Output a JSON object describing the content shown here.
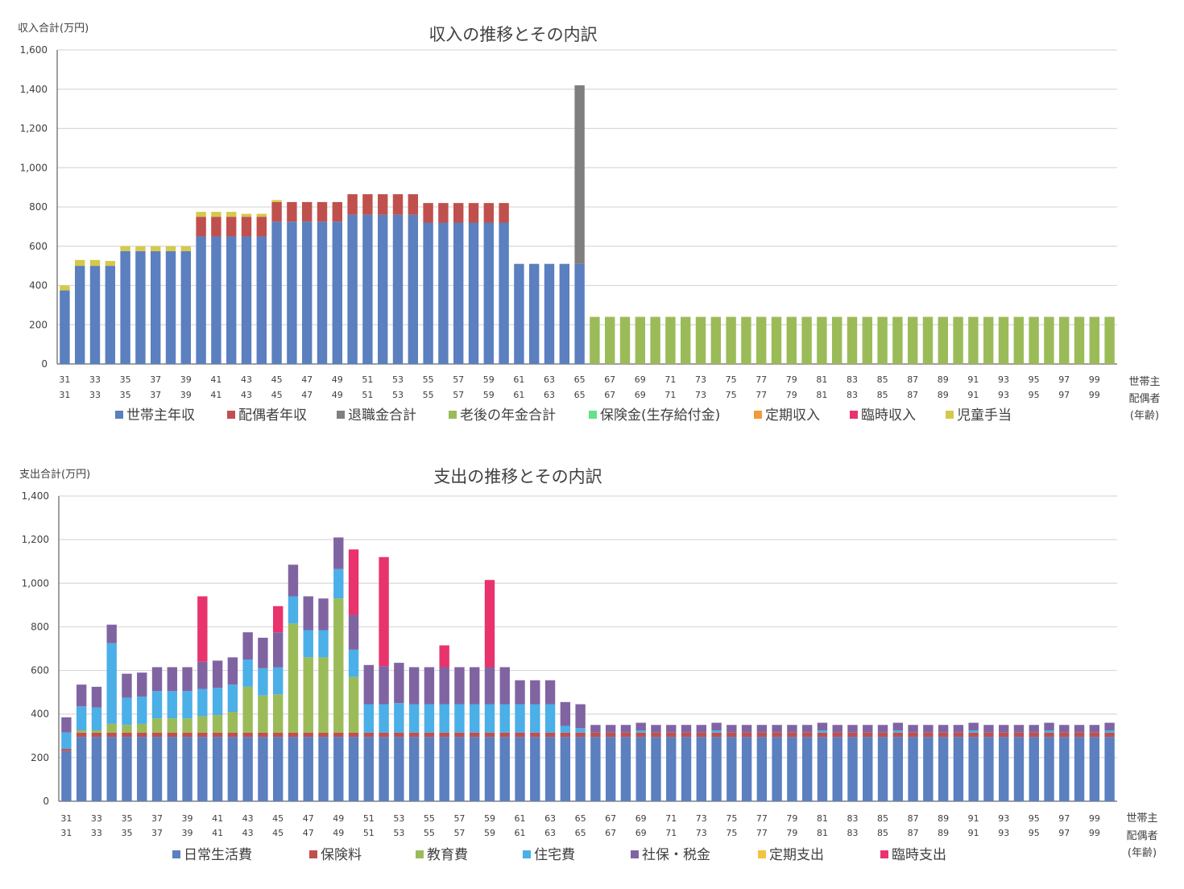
{
  "chart_data": [
    {
      "type": "bar",
      "stacked": true,
      "title": "収入の推移とその内訳",
      "ylabel": "収入合計(万円)",
      "ylim": [
        0,
        1600
      ],
      "yticks": [
        "0",
        "200",
        "400",
        "600",
        "800",
        "1,000",
        "1,200",
        "1,400",
        "1,600"
      ],
      "ytick_values": [
        0,
        200,
        400,
        600,
        800,
        1000,
        1200,
        1400,
        1600
      ],
      "x_start": 31,
      "x_end": 100,
      "x_label_right": [
        "世帯主",
        "配偶者",
        "(年齢)"
      ],
      "legend_position": "bottom",
      "grid": true,
      "series": [
        {
          "name": "世帯主年収",
          "color": "#5b7fbf",
          "values": [
            375,
            500,
            500,
            500,
            575,
            575,
            575,
            575,
            575,
            650,
            650,
            650,
            650,
            650,
            725,
            725,
            725,
            725,
            725,
            760,
            760,
            760,
            760,
            760,
            720,
            720,
            720,
            720,
            720,
            720,
            510,
            510,
            510,
            510,
            510,
            0,
            0,
            0,
            0,
            0,
            0,
            0,
            0,
            0,
            0,
            0,
            0,
            0,
            0,
            0,
            0,
            0,
            0,
            0,
            0,
            0,
            0,
            0,
            0,
            0,
            0,
            0,
            0,
            0,
            0,
            0,
            0,
            0,
            0,
            0
          ]
        },
        {
          "name": "配偶者年収",
          "color": "#c0504d",
          "values": [
            0,
            0,
            0,
            0,
            0,
            0,
            0,
            0,
            0,
            100,
            100,
            100,
            100,
            100,
            100,
            100,
            100,
            100,
            100,
            105,
            105,
            105,
            105,
            105,
            100,
            100,
            100,
            100,
            100,
            100,
            0,
            0,
            0,
            0,
            0,
            0,
            0,
            0,
            0,
            0,
            0,
            0,
            0,
            0,
            0,
            0,
            0,
            0,
            0,
            0,
            0,
            0,
            0,
            0,
            0,
            0,
            0,
            0,
            0,
            0,
            0,
            0,
            0,
            0,
            0,
            0,
            0,
            0,
            0,
            0
          ]
        },
        {
          "name": "退職金合計",
          "color": "#7f7f7f",
          "values": [
            0,
            0,
            0,
            0,
            0,
            0,
            0,
            0,
            0,
            0,
            0,
            0,
            0,
            0,
            0,
            0,
            0,
            0,
            0,
            0,
            0,
            0,
            0,
            0,
            0,
            0,
            0,
            0,
            0,
            0,
            0,
            0,
            0,
            0,
            910,
            0,
            0,
            0,
            0,
            0,
            0,
            0,
            0,
            0,
            0,
            0,
            0,
            0,
            0,
            0,
            0,
            0,
            0,
            0,
            0,
            0,
            0,
            0,
            0,
            0,
            0,
            0,
            0,
            0,
            0,
            0,
            0,
            0,
            0,
            0
          ]
        },
        {
          "name": "老後の年金合計",
          "color": "#9bbb59",
          "values": [
            0,
            0,
            0,
            0,
            0,
            0,
            0,
            0,
            0,
            0,
            0,
            0,
            0,
            0,
            0,
            0,
            0,
            0,
            0,
            0,
            0,
            0,
            0,
            0,
            0,
            0,
            0,
            0,
            0,
            0,
            0,
            0,
            0,
            0,
            0,
            240,
            240,
            240,
            240,
            240,
            240,
            240,
            240,
            240,
            240,
            240,
            240,
            240,
            240,
            240,
            240,
            240,
            240,
            240,
            240,
            240,
            240,
            240,
            240,
            240,
            240,
            240,
            240,
            240,
            240,
            240,
            240,
            240,
            240,
            240
          ]
        },
        {
          "name": "保険金(生存給付金)",
          "color": "#66e08a",
          "values": [
            0,
            0,
            0,
            0,
            0,
            0,
            0,
            0,
            0,
            0,
            0,
            0,
            0,
            0,
            0,
            0,
            0,
            0,
            0,
            0,
            0,
            0,
            0,
            0,
            0,
            0,
            0,
            0,
            0,
            0,
            0,
            0,
            0,
            0,
            0,
            0,
            0,
            0,
            0,
            0,
            0,
            0,
            0,
            0,
            0,
            0,
            0,
            0,
            0,
            0,
            0,
            0,
            0,
            0,
            0,
            0,
            0,
            0,
            0,
            0,
            0,
            0,
            0,
            0,
            0,
            0,
            0,
            0,
            0,
            0
          ]
        },
        {
          "name": "定期収入",
          "color": "#f39a3b",
          "values": [
            0,
            0,
            0,
            0,
            0,
            0,
            0,
            0,
            0,
            0,
            0,
            0,
            0,
            0,
            0,
            0,
            0,
            0,
            0,
            0,
            0,
            0,
            0,
            0,
            0,
            0,
            0,
            0,
            0,
            0,
            0,
            0,
            0,
            0,
            0,
            0,
            0,
            0,
            0,
            0,
            0,
            0,
            0,
            0,
            0,
            0,
            0,
            0,
            0,
            0,
            0,
            0,
            0,
            0,
            0,
            0,
            0,
            0,
            0,
            0,
            0,
            0,
            0,
            0,
            0,
            0,
            0,
            0,
            0,
            0
          ]
        },
        {
          "name": "臨時収入",
          "color": "#e8336d",
          "values": [
            0,
            0,
            0,
            0,
            0,
            0,
            0,
            0,
            0,
            0,
            0,
            0,
            0,
            0,
            0,
            0,
            0,
            0,
            0,
            0,
            0,
            0,
            0,
            0,
            0,
            0,
            0,
            0,
            0,
            0,
            0,
            0,
            0,
            0,
            0,
            0,
            0,
            0,
            0,
            0,
            0,
            0,
            0,
            0,
            0,
            0,
            0,
            0,
            0,
            0,
            0,
            0,
            0,
            0,
            0,
            0,
            0,
            0,
            0,
            0,
            0,
            0,
            0,
            0,
            0,
            0,
            0,
            0,
            0,
            0
          ]
        },
        {
          "name": "児童手当",
          "color": "#d4c94a",
          "values": [
            25,
            30,
            30,
            25,
            25,
            25,
            25,
            25,
            25,
            25,
            25,
            25,
            15,
            15,
            10,
            0,
            0,
            0,
            0,
            0,
            0,
            0,
            0,
            0,
            0,
            0,
            0,
            0,
            0,
            0,
            0,
            0,
            0,
            0,
            0,
            0,
            0,
            0,
            0,
            0,
            0,
            0,
            0,
            0,
            0,
            0,
            0,
            0,
            0,
            0,
            0,
            0,
            0,
            0,
            0,
            0,
            0,
            0,
            0,
            0,
            0,
            0,
            0,
            0,
            0,
            0,
            0,
            0,
            0,
            0
          ]
        }
      ]
    },
    {
      "type": "bar",
      "stacked": true,
      "title": "支出の推移とその内訳",
      "ylabel": "支出合計(万円)",
      "ylim": [
        0,
        1400
      ],
      "yticks": [
        "0",
        "200",
        "400",
        "600",
        "800",
        "1,000",
        "1,200",
        "1,400"
      ],
      "ytick_values": [
        0,
        200,
        400,
        600,
        800,
        1000,
        1200,
        1400
      ],
      "x_start": 31,
      "x_end": 100,
      "x_label_right": [
        "世帯主",
        "配偶者",
        "(年齢)"
      ],
      "legend_position": "bottom",
      "grid": true,
      "series": [
        {
          "name": "日常生活費",
          "color": "#5b7fbf",
          "values": [
            230,
            295,
            295,
            295,
            295,
            295,
            295,
            295,
            295,
            295,
            295,
            295,
            295,
            295,
            295,
            295,
            295,
            295,
            295,
            295,
            295,
            295,
            295,
            295,
            295,
            295,
            295,
            295,
            295,
            295,
            295,
            295,
            295,
            295,
            295,
            295,
            295,
            295,
            295,
            295,
            295,
            295,
            295,
            295,
            295,
            295,
            295,
            295,
            295,
            295,
            295,
            295,
            295,
            295,
            295,
            295,
            295,
            295,
            295,
            295,
            295,
            295,
            295,
            295,
            295,
            295,
            295,
            295,
            295,
            295
          ]
        },
        {
          "name": "保険料",
          "color": "#c0504d",
          "values": [
            10,
            20,
            20,
            20,
            20,
            20,
            20,
            20,
            20,
            20,
            20,
            20,
            20,
            20,
            20,
            20,
            20,
            20,
            20,
            20,
            20,
            20,
            20,
            20,
            20,
            20,
            20,
            20,
            20,
            20,
            20,
            20,
            20,
            20,
            20,
            20,
            20,
            20,
            20,
            20,
            20,
            20,
            20,
            20,
            20,
            20,
            20,
            20,
            20,
            20,
            20,
            20,
            20,
            20,
            20,
            20,
            20,
            20,
            20,
            20,
            20,
            20,
            20,
            20,
            20,
            20,
            20,
            20,
            20,
            20
          ]
        },
        {
          "name": "教育費",
          "color": "#9bbb59",
          "values": [
            0,
            10,
            10,
            40,
            35,
            40,
            65,
            65,
            65,
            75,
            80,
            95,
            210,
            170,
            175,
            500,
            345,
            345,
            615,
            255,
            0,
            0,
            0,
            0,
            0,
            0,
            0,
            0,
            0,
            0,
            0,
            0,
            0,
            0,
            0,
            0,
            0,
            0,
            0,
            0,
            0,
            0,
            0,
            0,
            0,
            0,
            0,
            0,
            0,
            0,
            0,
            0,
            0,
            0,
            0,
            0,
            0,
            0,
            0,
            0,
            0,
            0,
            0,
            0,
            0,
            0,
            0,
            0,
            0,
            0
          ]
        },
        {
          "name": "住宅費",
          "color": "#4bafe8",
          "values": [
            75,
            110,
            105,
            370,
            125,
            125,
            125,
            125,
            125,
            125,
            125,
            125,
            125,
            125,
            125,
            125,
            125,
            125,
            135,
            125,
            130,
            130,
            135,
            130,
            130,
            130,
            130,
            130,
            130,
            130,
            130,
            130,
            130,
            30,
            20,
            0,
            0,
            0,
            10,
            0,
            0,
            0,
            0,
            10,
            0,
            0,
            0,
            0,
            0,
            0,
            10,
            0,
            0,
            0,
            0,
            10,
            0,
            0,
            0,
            0,
            10,
            0,
            0,
            0,
            0,
            10,
            0,
            0,
            0,
            10
          ]
        },
        {
          "name": "社保・税金",
          "color": "#8064a2",
          "values": [
            70,
            100,
            95,
            85,
            110,
            110,
            110,
            110,
            110,
            125,
            125,
            125,
            125,
            140,
            160,
            145,
            155,
            145,
            145,
            160,
            180,
            175,
            185,
            170,
            170,
            170,
            170,
            170,
            170,
            170,
            110,
            110,
            110,
            110,
            110,
            35,
            35,
            35,
            35,
            35,
            35,
            35,
            35,
            35,
            35,
            35,
            35,
            35,
            35,
            35,
            35,
            35,
            35,
            35,
            35,
            35,
            35,
            35,
            35,
            35,
            35,
            35,
            35,
            35,
            35,
            35,
            35,
            35,
            35,
            35
          ]
        },
        {
          "name": "定期支出",
          "color": "#f5c242",
          "values": [
            0,
            0,
            0,
            0,
            0,
            0,
            0,
            0,
            0,
            0,
            0,
            0,
            0,
            0,
            0,
            0,
            0,
            0,
            0,
            0,
            0,
            0,
            0,
            0,
            0,
            0,
            0,
            0,
            0,
            0,
            0,
            0,
            0,
            0,
            0,
            0,
            0,
            0,
            0,
            0,
            0,
            0,
            0,
            0,
            0,
            0,
            0,
            0,
            0,
            0,
            0,
            0,
            0,
            0,
            0,
            0,
            0,
            0,
            0,
            0,
            0,
            0,
            0,
            0,
            0,
            0,
            0,
            0,
            0,
            0
          ]
        },
        {
          "name": "臨時支出",
          "color": "#e8336d",
          "values": [
            0,
            0,
            0,
            0,
            0,
            0,
            0,
            0,
            0,
            300,
            0,
            0,
            0,
            0,
            120,
            0,
            0,
            0,
            0,
            300,
            0,
            500,
            0,
            0,
            0,
            100,
            0,
            0,
            400,
            0,
            0,
            0,
            0,
            0,
            0,
            0,
            0,
            0,
            0,
            0,
            0,
            0,
            0,
            0,
            0,
            0,
            0,
            0,
            0,
            0,
            0,
            0,
            0,
            0,
            0,
            0,
            0,
            0,
            0,
            0,
            0,
            0,
            0,
            0,
            0,
            0,
            0,
            0,
            0,
            0
          ]
        }
      ]
    }
  ]
}
